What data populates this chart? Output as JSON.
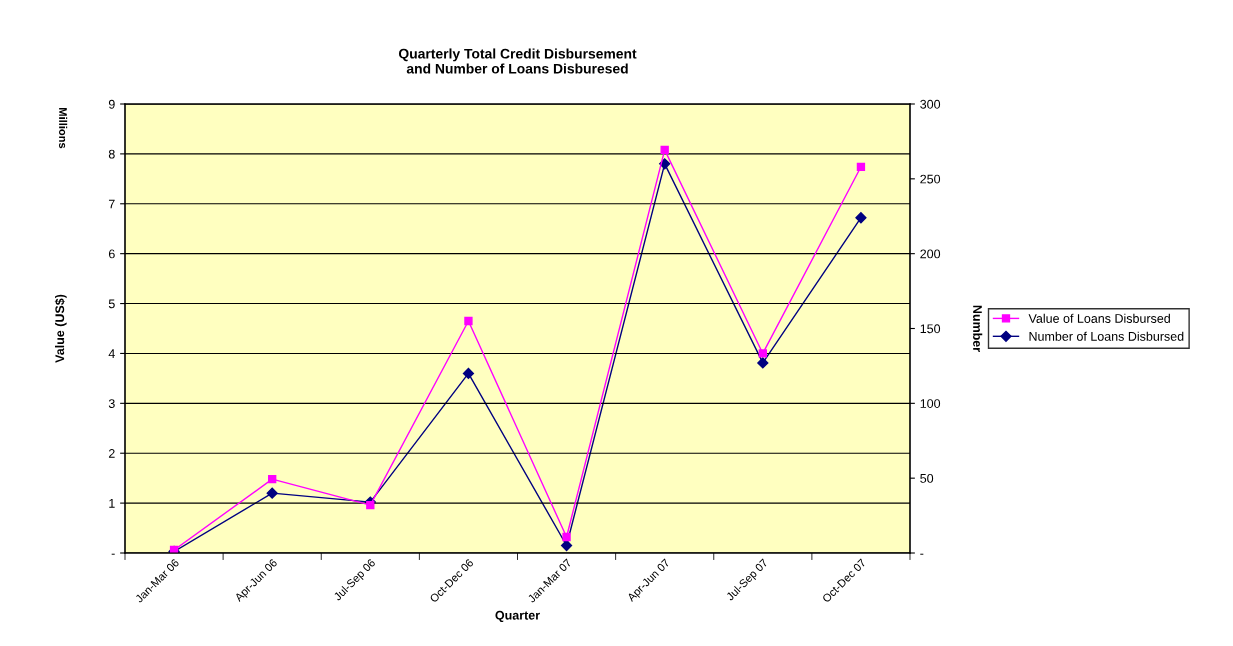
{
  "chart_data": {
    "type": "line",
    "title": "Quarterly Total Credit Disbursement\nand Number of Loans Disburesed",
    "xlabel": "Quarter",
    "ylabel": "Value (US$)",
    "y2label": "Number",
    "annotations": [
      "Millions"
    ],
    "categories": [
      "Jan-Mar 06",
      "Apr-Jun 06",
      "Jul-Sep 06",
      "Oct-Dec 06",
      "Jan-Mar 07",
      "Apr-Jun 07",
      "Jul-Sep 07",
      "Oct-Dec 07"
    ],
    "series": [
      {
        "name": "Value of Loans Disbursed",
        "color": "#ff00ff",
        "marker": "square",
        "values": [
          0.06,
          1.48,
          0.96,
          4.65,
          0.32,
          8.08,
          4.0,
          7.74
        ]
      },
      {
        "name": "Number of Loans Disbursed",
        "color": "#000080",
        "marker": "diamond",
        "axis": "y2",
        "values": [
          1,
          40,
          34,
          120,
          5,
          260,
          127,
          224
        ]
      }
    ],
    "ylim": [
      0,
      9
    ],
    "yticks": [
      {
        "value": 0,
        "label": "-"
      },
      1,
      2,
      3,
      4,
      5,
      6,
      7,
      8,
      9
    ],
    "y2lim": [
      0,
      300
    ],
    "y2ticks": [
      {
        "value": 0,
        "label": "-"
      },
      50,
      100,
      150,
      200,
      250,
      300
    ],
    "grid": "y",
    "legend": "right",
    "line_style": "solid"
  }
}
